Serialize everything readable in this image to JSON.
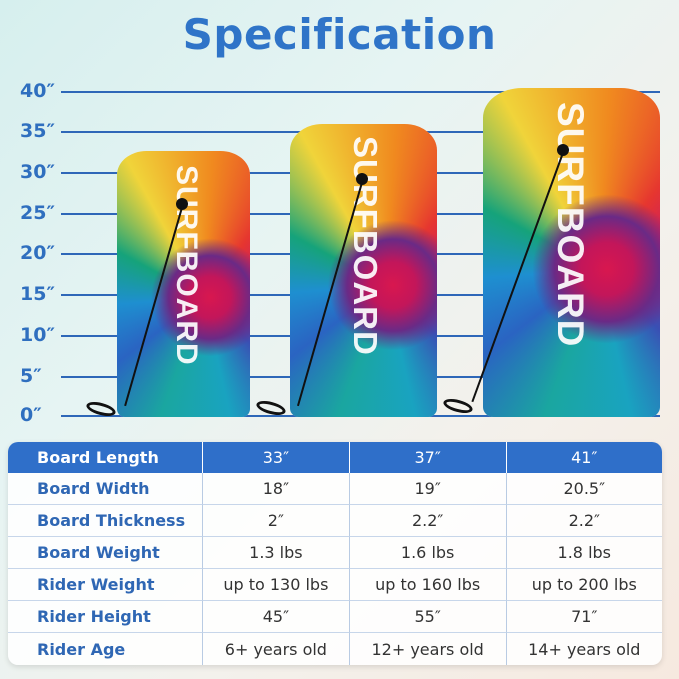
{
  "title": "Specification",
  "ruler": {
    "unit": "″",
    "ticks": [
      "40″",
      "35″",
      "30″",
      "25″",
      "20″",
      "15″",
      "10″",
      "5″",
      "0″"
    ]
  },
  "boards": [
    {
      "brand_text": "SURFBOARD",
      "length": "33″"
    },
    {
      "brand_text": "SURFBOARD",
      "length": "37″"
    },
    {
      "brand_text": "SURFBOARD",
      "length": "41″"
    }
  ],
  "colors": {
    "accent": "#2f6fc9",
    "title": "#2f74c8",
    "line": "#2e67b8"
  },
  "table": {
    "header": {
      "label": "Board Length",
      "values": [
        "33″",
        "37″",
        "41″"
      ]
    },
    "rows": [
      {
        "label": "Board Width",
        "values": [
          "18″",
          "19″",
          "20.5″"
        ]
      },
      {
        "label": "Board Thickness",
        "values": [
          "2″",
          "2.2″",
          "2.2″"
        ]
      },
      {
        "label": "Board Weight",
        "values": [
          "1.3 lbs",
          "1.6 lbs",
          "1.8 lbs"
        ]
      },
      {
        "label": "Rider Weight",
        "values": [
          "up to 130 lbs",
          "up to 160 lbs",
          "up to 200 lbs"
        ]
      },
      {
        "label": "Rider Height",
        "values": [
          "45″",
          "55″",
          "71″"
        ]
      },
      {
        "label": "Rider Age",
        "values": [
          "6+ years old",
          "12+ years old",
          "14+ years old"
        ]
      }
    ]
  }
}
